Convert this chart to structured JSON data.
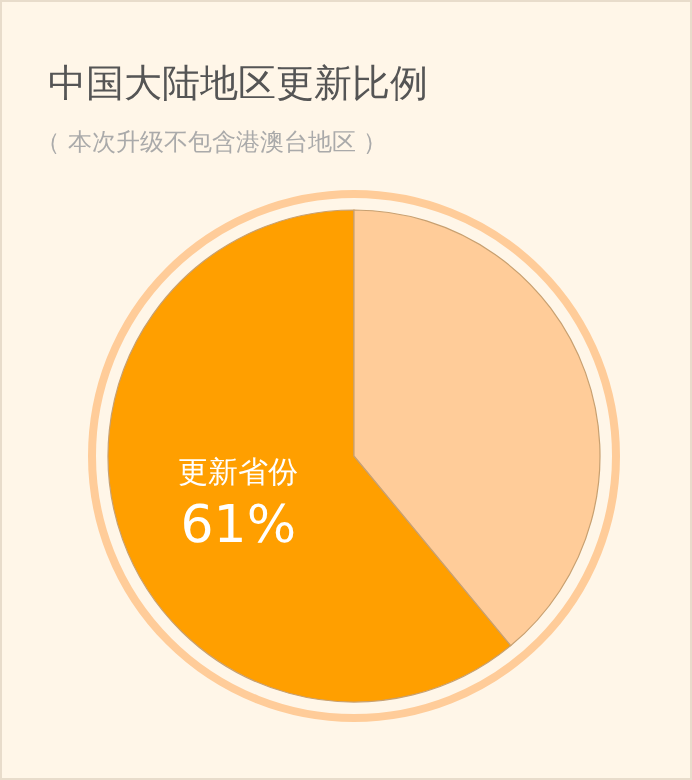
{
  "chart_data": {
    "type": "pie",
    "title": "中国大陆地区更新比例",
    "subtitle": "（ 本次升级不包含港澳台地区 ）",
    "categories": [
      "更新省份",
      null
    ],
    "values": [
      61,
      39
    ],
    "colors": [
      "#ff9f00",
      "#ffcc99"
    ],
    "value_labels": [
      "61%",
      null
    ]
  }
}
